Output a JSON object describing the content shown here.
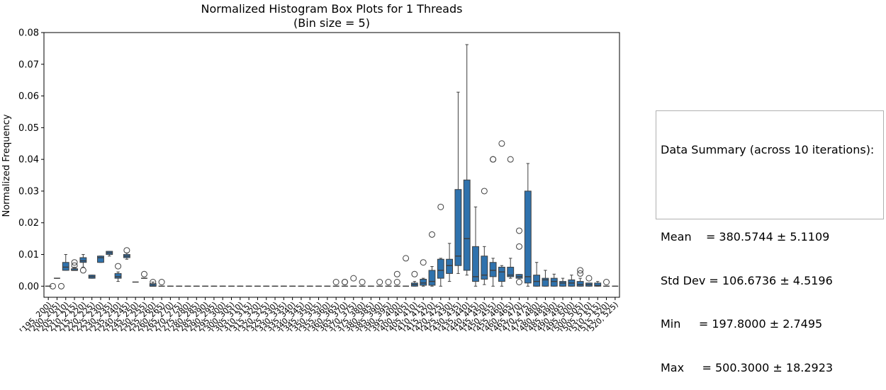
{
  "chart_data": {
    "type": "box",
    "title": "Normalized Histogram Box Plots for 1 Threads",
    "subtitle": "(Bin size = 5)",
    "ylabel": "Normalized Frequency",
    "xlabel": "",
    "ylim": [
      -0.0035,
      0.08
    ],
    "yticks": [
      "0.00",
      "0.01",
      "0.02",
      "0.03",
      "0.04",
      "0.05",
      "0.06",
      "0.07",
      "0.08"
    ],
    "box_color": "#2f72ad",
    "line_color": "#3f3f3f",
    "categories": [
      "[195, 200)",
      "[200, 205)",
      "[205, 210)",
      "[210, 215)",
      "[215, 220)",
      "[220, 225)",
      "[225, 230)",
      "[230, 235)",
      "[235, 240)",
      "[240, 245)",
      "[245, 250)",
      "[250, 255)",
      "[255, 260)",
      "[260, 265)",
      "[265, 270)",
      "[270, 275)",
      "[275, 280)",
      "[280, 285)",
      "[285, 290)",
      "[290, 295)",
      "[295, 300)",
      "[300, 305)",
      "[305, 310)",
      "[310, 315)",
      "[315, 320)",
      "[320, 325)",
      "[325, 330)",
      "[330, 335)",
      "[335, 340)",
      "[340, 345)",
      "[345, 350)",
      "[350, 355)",
      "[355, 360)",
      "[360, 365)",
      "[365, 370)",
      "[370, 375)",
      "[375, 380)",
      "[380, 385)",
      "[385, 390)",
      "[390, 395)",
      "[395, 400)",
      "[400, 405)",
      "[405, 410)",
      "[410, 415)",
      "[415, 420)",
      "[420, 425)",
      "[425, 430)",
      "[430, 435)",
      "[435, 440)",
      "[440, 445)",
      "[445, 450)",
      "[450, 455)",
      "[455, 460)",
      "[460, 465)",
      "[465, 470)",
      "[470, 475)",
      "[475, 480)",
      "[480, 485)",
      "[485, 490)",
      "[490, 495)",
      "[495, 500)",
      "[500, 505)",
      "[505, 510)",
      "[510, 515)",
      "[515, 520)",
      "[520, 525)"
    ],
    "boxes": [
      {
        "lo": 0,
        "q1": 0,
        "med": 0,
        "q3": 0,
        "hi": 0,
        "out": []
      },
      {
        "lo": 0.0025,
        "q1": 0.0025,
        "med": 0.0025,
        "q3": 0.0025,
        "hi": 0.0025,
        "out": [
          0,
          0
        ]
      },
      {
        "lo": 0.005,
        "q1": 0.005,
        "med": 0.006,
        "q3": 0.0075,
        "hi": 0.01,
        "out": []
      },
      {
        "lo": 0.005,
        "q1": 0.005,
        "med": 0.005,
        "q3": 0.0055,
        "hi": 0.006,
        "out": [
          0.0065,
          0.0075
        ]
      },
      {
        "lo": 0.006,
        "q1": 0.0075,
        "med": 0.008,
        "q3": 0.009,
        "hi": 0.01,
        "out": [
          0.005
        ]
      },
      {
        "lo": 0.0025,
        "q1": 0.0025,
        "med": 0.003,
        "q3": 0.0035,
        "hi": 0.0035,
        "out": []
      },
      {
        "lo": 0.0075,
        "q1": 0.0075,
        "med": 0.009,
        "q3": 0.0095,
        "hi": 0.0095,
        "out": []
      },
      {
        "lo": 0.0095,
        "q1": 0.01,
        "med": 0.0105,
        "q3": 0.011,
        "hi": 0.011,
        "out": []
      },
      {
        "lo": 0.0015,
        "q1": 0.0025,
        "med": 0.003,
        "q3": 0.004,
        "hi": 0.0045,
        "out": [
          0.0063
        ]
      },
      {
        "lo": 0.0085,
        "q1": 0.009,
        "med": 0.0095,
        "q3": 0.01,
        "hi": 0.0105,
        "out": [
          0.0113
        ]
      },
      {
        "lo": 0.0013,
        "q1": 0.0013,
        "med": 0.0013,
        "q3": 0.0013,
        "hi": 0.0013,
        "out": []
      },
      {
        "lo": 0.0025,
        "q1": 0.0025,
        "med": 0.0025,
        "q3": 0.0025,
        "hi": 0.0025,
        "out": [
          0.0038
        ]
      },
      {
        "lo": 0,
        "q1": 0,
        "med": 0,
        "q3": 0.0008,
        "hi": 0.0013,
        "out": [
          0.0013
        ]
      },
      {
        "lo": 0,
        "q1": 0,
        "med": 0,
        "q3": 0,
        "hi": 0,
        "out": [
          0.0013
        ]
      },
      {
        "lo": 0,
        "q1": 0,
        "med": 0,
        "q3": 0,
        "hi": 0,
        "out": []
      },
      {
        "lo": 0,
        "q1": 0,
        "med": 0,
        "q3": 0,
        "hi": 0,
        "out": []
      },
      {
        "lo": 0,
        "q1": 0,
        "med": 0,
        "q3": 0,
        "hi": 0,
        "out": []
      },
      {
        "lo": 0,
        "q1": 0,
        "med": 0,
        "q3": 0,
        "hi": 0,
        "out": []
      },
      {
        "lo": 0,
        "q1": 0,
        "med": 0,
        "q3": 0,
        "hi": 0,
        "out": []
      },
      {
        "lo": 0,
        "q1": 0,
        "med": 0,
        "q3": 0,
        "hi": 0,
        "out": []
      },
      {
        "lo": 0,
        "q1": 0,
        "med": 0,
        "q3": 0,
        "hi": 0,
        "out": []
      },
      {
        "lo": 0,
        "q1": 0,
        "med": 0,
        "q3": 0,
        "hi": 0,
        "out": []
      },
      {
        "lo": 0,
        "q1": 0,
        "med": 0,
        "q3": 0,
        "hi": 0,
        "out": []
      },
      {
        "lo": 0,
        "q1": 0,
        "med": 0,
        "q3": 0,
        "hi": 0,
        "out": []
      },
      {
        "lo": 0,
        "q1": 0,
        "med": 0,
        "q3": 0,
        "hi": 0,
        "out": []
      },
      {
        "lo": 0,
        "q1": 0,
        "med": 0,
        "q3": 0,
        "hi": 0,
        "out": []
      },
      {
        "lo": 0,
        "q1": 0,
        "med": 0,
        "q3": 0,
        "hi": 0,
        "out": []
      },
      {
        "lo": 0,
        "q1": 0,
        "med": 0,
        "q3": 0,
        "hi": 0,
        "out": []
      },
      {
        "lo": 0,
        "q1": 0,
        "med": 0,
        "q3": 0,
        "hi": 0,
        "out": []
      },
      {
        "lo": 0,
        "q1": 0,
        "med": 0,
        "q3": 0,
        "hi": 0,
        "out": []
      },
      {
        "lo": 0,
        "q1": 0,
        "med": 0,
        "q3": 0,
        "hi": 0,
        "out": []
      },
      {
        "lo": 0,
        "q1": 0,
        "med": 0,
        "q3": 0,
        "hi": 0,
        "out": []
      },
      {
        "lo": 0,
        "q1": 0,
        "med": 0,
        "q3": 0,
        "hi": 0,
        "out": []
      },
      {
        "lo": 0,
        "q1": 0,
        "med": 0,
        "q3": 0,
        "hi": 0,
        "out": [
          0.0013
        ]
      },
      {
        "lo": 0,
        "q1": 0,
        "med": 0,
        "q3": 0,
        "hi": 0,
        "out": [
          0.0013,
          0.0013
        ]
      },
      {
        "lo": 0,
        "q1": 0,
        "med": 0,
        "q3": 0,
        "hi": 0,
        "out": [
          0.0025
        ]
      },
      {
        "lo": 0,
        "q1": 0,
        "med": 0,
        "q3": 0,
        "hi": 0,
        "out": [
          0.0013
        ]
      },
      {
        "lo": 0,
        "q1": 0,
        "med": 0,
        "q3": 0,
        "hi": 0,
        "out": []
      },
      {
        "lo": 0,
        "q1": 0,
        "med": 0,
        "q3": 0,
        "hi": 0,
        "out": [
          0.0013
        ]
      },
      {
        "lo": 0,
        "q1": 0,
        "med": 0,
        "q3": 0,
        "hi": 0,
        "out": [
          0.0013
        ]
      },
      {
        "lo": 0,
        "q1": 0,
        "med": 0,
        "q3": 0,
        "hi": 0,
        "out": [
          0.0013,
          0.0038
        ]
      },
      {
        "lo": 0,
        "q1": 0,
        "med": 0,
        "q3": 0,
        "hi": 0,
        "out": [
          0.0088
        ]
      },
      {
        "lo": 0,
        "q1": 0,
        "med": 0.0005,
        "q3": 0.001,
        "hi": 0.0015,
        "out": [
          0.0038
        ]
      },
      {
        "lo": 0,
        "q1": 0.0003,
        "med": 0.001,
        "q3": 0.0022,
        "hi": 0.0025,
        "out": [
          0.0075
        ]
      },
      {
        "lo": 0,
        "q1": 0.0003,
        "med": 0.0015,
        "q3": 0.005,
        "hi": 0.0062,
        "out": [
          0.0163
        ]
      },
      {
        "lo": 0,
        "q1": 0.0025,
        "med": 0.005,
        "q3": 0.0085,
        "hi": 0.0088,
        "out": [
          0.025
        ]
      },
      {
        "lo": 0.0015,
        "q1": 0.004,
        "med": 0.0065,
        "q3": 0.0085,
        "hi": 0.0135,
        "out": []
      },
      {
        "lo": 0.004,
        "q1": 0.0065,
        "med": 0.0095,
        "q3": 0.0305,
        "hi": 0.0612,
        "out": []
      },
      {
        "lo": 0.0035,
        "q1": 0.005,
        "med": 0.015,
        "q3": 0.0335,
        "hi": 0.0762,
        "out": []
      },
      {
        "lo": 0,
        "q1": 0.0015,
        "med": 0.003,
        "q3": 0.0125,
        "hi": 0.025,
        "out": []
      },
      {
        "lo": 0.0005,
        "q1": 0.0022,
        "med": 0.0035,
        "q3": 0.0095,
        "hi": 0.0125,
        "out": [
          0.03
        ]
      },
      {
        "lo": 0,
        "q1": 0.003,
        "med": 0.005,
        "q3": 0.0075,
        "hi": 0.0088,
        "out": [
          0.04,
          0.04
        ]
      },
      {
        "lo": 0,
        "q1": 0.0015,
        "med": 0.0045,
        "q3": 0.006,
        "hi": 0.0065,
        "out": [
          0.045
        ]
      },
      {
        "lo": 0.0025,
        "q1": 0.003,
        "med": 0.0035,
        "q3": 0.006,
        "hi": 0.0088,
        "out": [
          0.04
        ]
      },
      {
        "lo": 0.0025,
        "q1": 0.0025,
        "med": 0.003,
        "q3": 0.0037,
        "hi": 0.0037,
        "out": [
          0.0013,
          0.0125,
          0.0175
        ]
      },
      {
        "lo": 0,
        "q1": 0.001,
        "med": 0.003,
        "q3": 0.03,
        "hi": 0.0387,
        "out": []
      },
      {
        "lo": 0,
        "q1": 0,
        "med": 0.0015,
        "q3": 0.0035,
        "hi": 0.0075,
        "out": []
      },
      {
        "lo": 0,
        "q1": 0,
        "med": 0.002,
        "q3": 0.0025,
        "hi": 0.005,
        "out": []
      },
      {
        "lo": 0,
        "q1": 0,
        "med": 0.0015,
        "q3": 0.0025,
        "hi": 0.0038,
        "out": []
      },
      {
        "lo": 0,
        "q1": 0,
        "med": 0.001,
        "q3": 0.0015,
        "hi": 0.0025,
        "out": []
      },
      {
        "lo": 0,
        "q1": 0,
        "med": 0.001,
        "q3": 0.002,
        "hi": 0.0035,
        "out": []
      },
      {
        "lo": 0,
        "q1": 0,
        "med": 0.0005,
        "q3": 0.0015,
        "hi": 0.0025,
        "out": [
          0.004,
          0.005
        ]
      },
      {
        "lo": 0,
        "q1": 0,
        "med": 0.0005,
        "q3": 0.001,
        "hi": 0.001,
        "out": [
          0.0025
        ]
      },
      {
        "lo": 0,
        "q1": 0,
        "med": 0.0002,
        "q3": 0.001,
        "hi": 0.0015,
        "out": []
      },
      {
        "lo": 0,
        "q1": 0,
        "med": 0,
        "q3": 0,
        "hi": 0,
        "out": [
          0.0013
        ]
      },
      {
        "lo": 0,
        "q1": 0,
        "med": 0,
        "q3": 0,
        "hi": 0,
        "out": []
      }
    ]
  },
  "summary": {
    "heading": "Data Summary (across 10 iterations):",
    "lines": [
      "Mean    = 380.5744 ± 5.1109",
      "Std Dev = 106.6736 ± 4.5196",
      "Min     = 197.8000 ± 2.7495",
      "Max     = 500.3000 ± 18.2923"
    ]
  }
}
